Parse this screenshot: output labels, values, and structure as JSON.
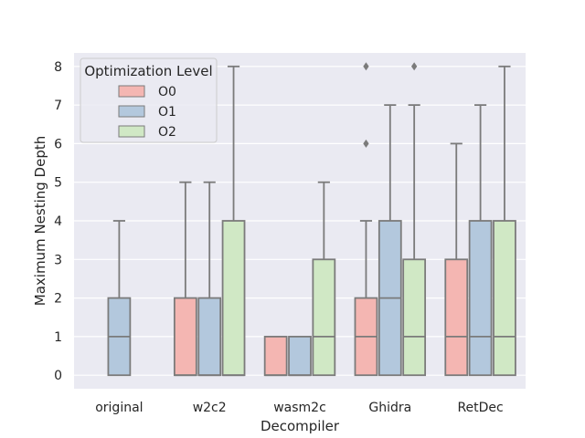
{
  "chart_data": {
    "type": "box",
    "title": "",
    "xlabel": "Decompiler",
    "ylabel": "Maximum Nesting Depth",
    "ylim": [
      -0.35,
      8.35
    ],
    "yticks": [
      0,
      1,
      2,
      3,
      4,
      5,
      6,
      7,
      8
    ],
    "grid": true,
    "legend": {
      "title": "Optimization Level",
      "placement": "top-left"
    },
    "categories": [
      "original",
      "w2c2",
      "wasm2c",
      "Ghidra",
      "RetDec"
    ],
    "series": [
      {
        "name": "O0",
        "color": "#f4b6b2",
        "boxes": [
          null,
          {
            "whislo": 0,
            "q1": 0,
            "med": 0,
            "q3": 2,
            "whishi": 5,
            "fliers": []
          },
          {
            "whislo": 0,
            "q1": 0,
            "med": 0,
            "q3": 1,
            "whishi": 1,
            "fliers": []
          },
          {
            "whislo": 0,
            "q1": 0,
            "med": 1,
            "q3": 2,
            "whishi": 4,
            "fliers": [
              6,
              8
            ]
          },
          {
            "whislo": 0,
            "q1": 0,
            "med": 1,
            "q3": 3,
            "whishi": 6,
            "fliers": []
          }
        ]
      },
      {
        "name": "O1",
        "color": "#b3c8dd",
        "boxes": [
          {
            "whislo": 0,
            "q1": 0,
            "med": 1,
            "q3": 2,
            "whishi": 4,
            "fliers": []
          },
          {
            "whislo": 0,
            "q1": 0,
            "med": 0,
            "q3": 2,
            "whishi": 5,
            "fliers": []
          },
          {
            "whislo": 0,
            "q1": 0,
            "med": 0,
            "q3": 1,
            "whishi": 1,
            "fliers": []
          },
          {
            "whislo": 0,
            "q1": 0,
            "med": 2,
            "q3": 4,
            "whishi": 7,
            "fliers": []
          },
          {
            "whislo": 0,
            "q1": 0,
            "med": 1,
            "q3": 4,
            "whishi": 7,
            "fliers": []
          }
        ]
      },
      {
        "name": "O2",
        "color": "#d0e8c5",
        "boxes": [
          null,
          {
            "whislo": 0,
            "q1": 0,
            "med": 0,
            "q3": 4,
            "whishi": 8,
            "fliers": []
          },
          {
            "whislo": 0,
            "q1": 0,
            "med": 1,
            "q3": 3,
            "whishi": 5,
            "fliers": []
          },
          {
            "whislo": 0,
            "q1": 0,
            "med": 1,
            "q3": 3,
            "whishi": 7,
            "fliers": [
              8
            ]
          },
          {
            "whislo": 0,
            "q1": 0,
            "med": 1,
            "q3": 4,
            "whishi": 8,
            "fliers": []
          }
        ]
      }
    ]
  }
}
